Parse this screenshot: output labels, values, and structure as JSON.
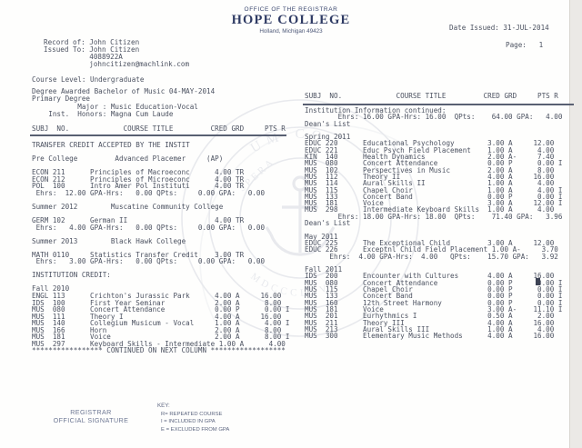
{
  "header": {
    "office": "OFFICE OF THE REGISTRAR",
    "college": "HOPE COLLEGE",
    "location": "Holland, Michigan 49423",
    "date_issued": "Date Issued: 31-JUL-2014",
    "page_number": "Page:   1"
  },
  "student": {
    "lines": [
      "Record of: John Citizen",
      "Issued To: John Citizen",
      "           4088922A",
      "           johncitizen@machlink.com"
    ],
    "course_level": "Course Level: Undergraduate"
  },
  "degree": {
    "lines": [
      "Degree Awarded Bachelor of Music 04-MAY-2014",
      "Primary Degree",
      "           Major : Music Education-Vocal",
      "    Inst.  Honors: Magna Cum Laude"
    ]
  },
  "table_header": "SUBJ  NO.             COURSE TITLE         CRED GRD     PTS R",
  "left_column": {
    "rows": [
      {
        "k": "t",
        "t": "TRANSFER CREDIT ACCEPTED BY THE INSTIT"
      },
      {
        "k": "b"
      },
      {
        "k": "t",
        "t": "Pre College         Advanced Placemer     (AP)"
      },
      {
        "k": "b"
      },
      {
        "k": "c",
        "s": "ECON",
        "n": "211",
        "t": "Principles of Macroeconc",
        "c": "4.00",
        "g": "TR",
        "p": "",
        "r": ""
      },
      {
        "k": "c",
        "s": "ECON",
        "n": "212",
        "t": "Principles of Microeconc",
        "c": "4.00",
        "g": "TR",
        "p": "",
        "r": ""
      },
      {
        "k": "c",
        "s": "POL",
        "n": "100",
        "t": "Intro Amer Pol Instituti",
        "c": "4.00",
        "g": "TR",
        "p": "",
        "r": ""
      },
      {
        "k": "t",
        "t": " Ehrs:  12.00 GPA-Hrs:   0.00 QPts:     0.00 GPA:   0.00"
      },
      {
        "k": "b"
      },
      {
        "k": "t",
        "t": "Summer 2012        Muscatine Community College"
      },
      {
        "k": "b"
      },
      {
        "k": "c",
        "s": "GERM",
        "n": "102",
        "t": "German II",
        "c": "4.00",
        "g": "TR",
        "p": "",
        "r": ""
      },
      {
        "k": "t",
        "t": " Ehrs:   4.00 GPA-Hrs:   0.00 QPts:     0.00 GPA:   0.00"
      },
      {
        "k": "b"
      },
      {
        "k": "t",
        "t": "Summer 2013        Black Hawk College"
      },
      {
        "k": "b"
      },
      {
        "k": "c",
        "s": "MATH",
        "n": "0110",
        "t": "Statistics Transfer Credit",
        "c": "3.00",
        "g": "TR",
        "p": "",
        "r": ""
      },
      {
        "k": "t",
        "t": " Ehrs:   3.00 GPA-Hrs:   0.00 QPts:     0.00 GPA:   0.00"
      },
      {
        "k": "b"
      },
      {
        "k": "t",
        "t": "INSTITUTION CREDIT:"
      },
      {
        "k": "b"
      },
      {
        "k": "t",
        "t": "Fall 2010"
      },
      {
        "k": "c",
        "s": "ENGL",
        "n": "113",
        "t": "Crichton's Jurassic Park",
        "c": "4.00",
        "g": "A",
        "p": "16.00",
        "r": ""
      },
      {
        "k": "c",
        "s": "IDS",
        "n": "100",
        "t": "First Year Seminar",
        "c": "2.00",
        "g": "A",
        "p": "8.00",
        "r": ""
      },
      {
        "k": "c",
        "s": "MUS",
        "n": "080",
        "t": "Concert Attendance",
        "c": "0.00",
        "g": "P",
        "p": "0.00",
        "r": "I"
      },
      {
        "k": "c",
        "s": "MUS",
        "n": "111",
        "t": "Theory I",
        "c": "4.00",
        "g": "A",
        "p": "16.00",
        "r": ""
      },
      {
        "k": "c",
        "s": "MUS",
        "n": "140",
        "t": "Collegium Musicum - Vocal",
        "c": "1.00",
        "g": "A",
        "p": "4.00",
        "r": "I"
      },
      {
        "k": "c",
        "s": "MUS",
        "n": "166",
        "t": "Horn",
        "c": "2.00",
        "g": "A",
        "p": "8.00",
        "r": ""
      },
      {
        "k": "c",
        "s": "MUS",
        "n": "181",
        "t": "Voice",
        "c": "2.00",
        "g": "A",
        "p": "8.00",
        "r": "I"
      },
      {
        "k": "c",
        "s": "MUS",
        "n": "297",
        "t": "Keyboard Skills - Intermediate",
        "c": "1.00",
        "g": "A",
        "p": "4.00",
        "r": ""
      },
      {
        "k": "t",
        "t": "***************** CONTINUED ON NEXT COLUMN ******************"
      }
    ]
  },
  "right_column": {
    "rows": [
      {
        "k": "t",
        "t": "Institution Information continued:"
      },
      {
        "k": "t",
        "t": "        Ehrs: 16.00 GPA-Hrs: 16.00  QPts:    64.00 GPA:   4.00"
      },
      {
        "k": "t",
        "t": "Dean's List"
      },
      {
        "k": "b"
      },
      {
        "k": "t",
        "t": "Spring 2011"
      },
      {
        "k": "c",
        "s": "EDUC",
        "n": "220",
        "t": "Educational Psychology",
        "c": "3.00",
        "g": "A",
        "p": "12.00",
        "r": ""
      },
      {
        "k": "c",
        "s": "EDUC",
        "n": "221",
        "t": "Educ Psych Field Placement",
        "c": "1.00",
        "g": "A",
        "p": "4.00",
        "r": ""
      },
      {
        "k": "c",
        "s": "KIN",
        "n": "140",
        "t": "Health Dynamics",
        "c": "2.00",
        "g": "A-",
        "p": "7.40",
        "r": ""
      },
      {
        "k": "c",
        "s": "MUS",
        "n": "080",
        "t": "Concert Attendance",
        "c": "0.00",
        "g": "P",
        "p": "0.00",
        "r": "I"
      },
      {
        "k": "c",
        "s": "MUS",
        "n": "102",
        "t": "Perspectives in Music",
        "c": "2.00",
        "g": "A",
        "p": "8.00",
        "r": ""
      },
      {
        "k": "c",
        "s": "MUS",
        "n": "112",
        "t": "Theory II",
        "c": "4.00",
        "g": "A",
        "p": "16.00",
        "r": ""
      },
      {
        "k": "c",
        "s": "MUS",
        "n": "114",
        "t": "Aural Skills II",
        "c": "1.00",
        "g": "A",
        "p": "4.00",
        "r": ""
      },
      {
        "k": "c",
        "s": "MUS",
        "n": "115",
        "t": "Chapel Choir",
        "c": "1.00",
        "g": "A",
        "p": "4.00",
        "r": "I"
      },
      {
        "k": "c",
        "s": "MUS",
        "n": "133",
        "t": "Concert Band",
        "c": "0.00",
        "g": "P",
        "p": "0.00",
        "r": "I"
      },
      {
        "k": "c",
        "s": "MUS",
        "n": "181",
        "t": "Voice",
        "c": "3.00",
        "g": "A",
        "p": "12.00",
        "r": "I"
      },
      {
        "k": "c",
        "s": "MUS",
        "n": "298",
        "t": "Intermediate Keyboard Skills",
        "c": "1.00",
        "g": "A",
        "p": "4.00",
        "r": ""
      },
      {
        "k": "t",
        "t": "        Ehrs: 18.00 GPA-Hrs: 18.00  QPts:    71.40 GPA:   3.96"
      },
      {
        "k": "t",
        "t": "Dean's List"
      },
      {
        "k": "b"
      },
      {
        "k": "t",
        "t": "May 2011"
      },
      {
        "k": "c",
        "s": "EDUC",
        "n": "225",
        "t": "The Exceptional Child",
        "c": "3.00",
        "g": "A",
        "p": "12.00",
        "r": ""
      },
      {
        "k": "c",
        "s": "EDUC",
        "n": "226",
        "t": "Exceptnl Child Field Placement",
        "c": "1.00",
        "g": "A-",
        "p": "3.70",
        "r": ""
      },
      {
        "k": "t",
        "t": "      Ehrs:  4.00 GPA-Hrs:  4.00   QPts:    15.70 GPA:   3.92"
      },
      {
        "k": "b"
      },
      {
        "k": "t",
        "t": "Fall 2011"
      },
      {
        "k": "c",
        "s": "IDS",
        "n": "200",
        "t": "Encounter with Cultures",
        "c": "4.00",
        "g": "A",
        "p": "16.00",
        "r": ""
      },
      {
        "k": "c",
        "s": "MUS",
        "n": "080",
        "t": "Concert Attendance",
        "c": "0.00",
        "g": "P",
        "p": "0.00",
        "r": "I"
      },
      {
        "k": "c",
        "s": "MUS",
        "n": "115",
        "t": "Chapel Choir",
        "c": "0.00",
        "g": "P",
        "p": "0.00",
        "r": "I"
      },
      {
        "k": "c",
        "s": "MUS",
        "n": "133",
        "t": "Concert Band",
        "c": "0.00",
        "g": "P",
        "p": "0.00",
        "r": "I"
      },
      {
        "k": "c",
        "s": "MUS",
        "n": "160",
        "t": "12th Street Harmony",
        "c": "0.00",
        "g": "P",
        "p": "0.00",
        "r": "I"
      },
      {
        "k": "c",
        "s": "MUS",
        "n": "181",
        "t": "Voice",
        "c": "3.00",
        "g": "A-",
        "p": "11.10",
        "r": "I"
      },
      {
        "k": "c",
        "s": "MUS",
        "n": "201",
        "t": "Eurhythmics I",
        "c": "0.50",
        "g": "A",
        "p": "2.00",
        "r": ""
      },
      {
        "k": "c",
        "s": "MUS",
        "n": "211",
        "t": "Theory III",
        "c": "4.00",
        "g": "A",
        "p": "16.00",
        "r": ""
      },
      {
        "k": "c",
        "s": "MUS",
        "n": "213",
        "t": "Aural Skills III",
        "c": "1.00",
        "g": "A",
        "p": "4.00",
        "r": ""
      },
      {
        "k": "c",
        "s": "MUS",
        "n": "300",
        "t": "Elementary Music Methods",
        "c": "4.00",
        "g": "A",
        "p": "16.00",
        "r": ""
      }
    ]
  },
  "footer": {
    "registrar_line1": "REGISTRAR",
    "registrar_line2": "OFFICIAL SIGNATURE",
    "key_title": "KEY:",
    "key_items": [
      "R= REPEATED COURSE",
      "I = INCLUDED IN GPA",
      "E = EXCLUDED FROM GPA"
    ]
  },
  "watermark": {
    "arc_top": "UM CO",
    "motto": "SPERA",
    "year": "MDCCCLXVI"
  },
  "colors": {
    "ink": "#4b5160",
    "navy": "#2e3a63",
    "seal": "#7e89a3"
  }
}
